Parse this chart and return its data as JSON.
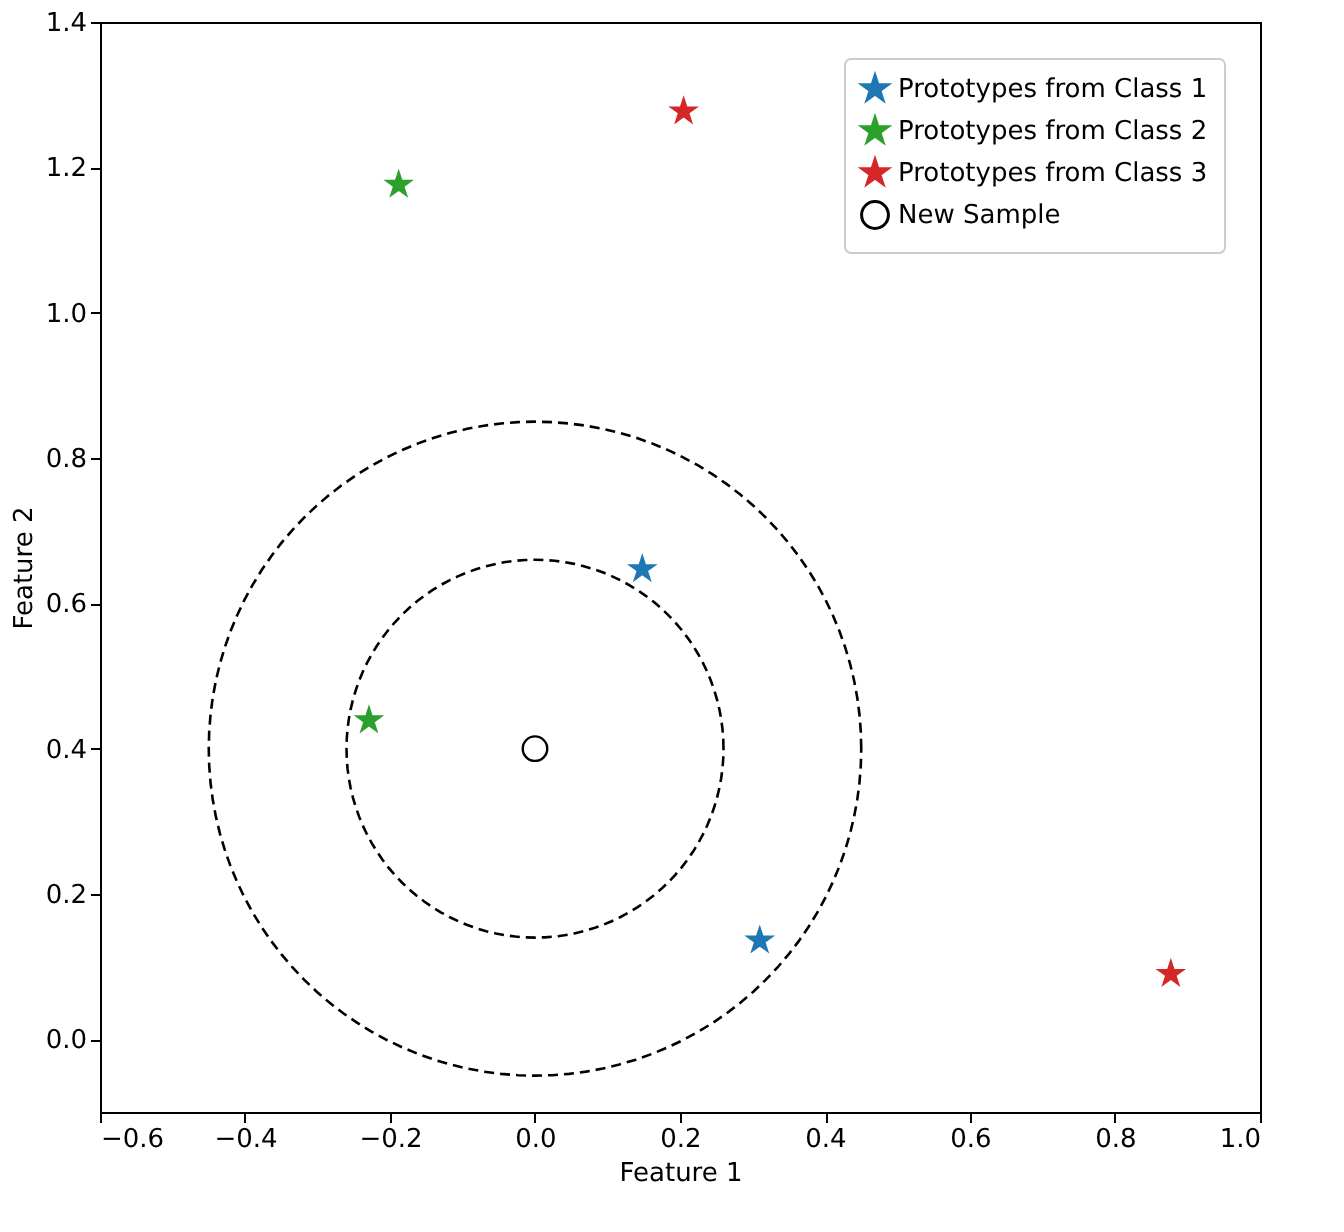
{
  "chart_data": {
    "type": "scatter",
    "xlabel": "Feature 1",
    "ylabel": "Feature 2",
    "xlim": [
      -0.6,
      1.0
    ],
    "ylim": [
      -0.1,
      1.4
    ],
    "xticks": [
      {
        "value": -0.6,
        "label": "−0.6"
      },
      {
        "value": -0.4,
        "label": "−0.4"
      },
      {
        "value": -0.2,
        "label": "−0.2"
      },
      {
        "value": 0,
        "label": "0.0"
      },
      0.2,
      0.4,
      0.6,
      0.8,
      {
        "value": 1.0,
        "label": "1.0"
      }
    ],
    "yticks": [
      {
        "value": 0,
        "label": "0.0"
      },
      0.2,
      0.4,
      0.6,
      0.8,
      {
        "value": 1.0,
        "label": "1.0"
      },
      1.2,
      1.4
    ],
    "grid": false,
    "legend": "top right",
    "series": [
      {
        "name": "Prototypes from Class 1",
        "type": "scatter",
        "marker": "star",
        "color": "#1f77b4",
        "x": [
          0.148,
          0.31
        ],
        "values": [
          0.647,
          0.136
        ]
      },
      {
        "name": "Prototypes from Class 2",
        "type": "scatter",
        "marker": "star",
        "color": "#2ca02c",
        "x": [
          -0.188,
          -0.229
        ],
        "values": [
          1.176,
          0.439
        ]
      },
      {
        "name": "Prototypes from Class 3",
        "type": "scatter",
        "marker": "star",
        "color": "#d62728",
        "x": [
          0.205,
          0.877
        ],
        "values": [
          1.277,
          0.09
        ]
      },
      {
        "name": "New Sample",
        "type": "scatter",
        "marker": "circle",
        "color": "#000000",
        "x": [
          0
        ],
        "values": [
          0.4
        ]
      }
    ]
  }
}
